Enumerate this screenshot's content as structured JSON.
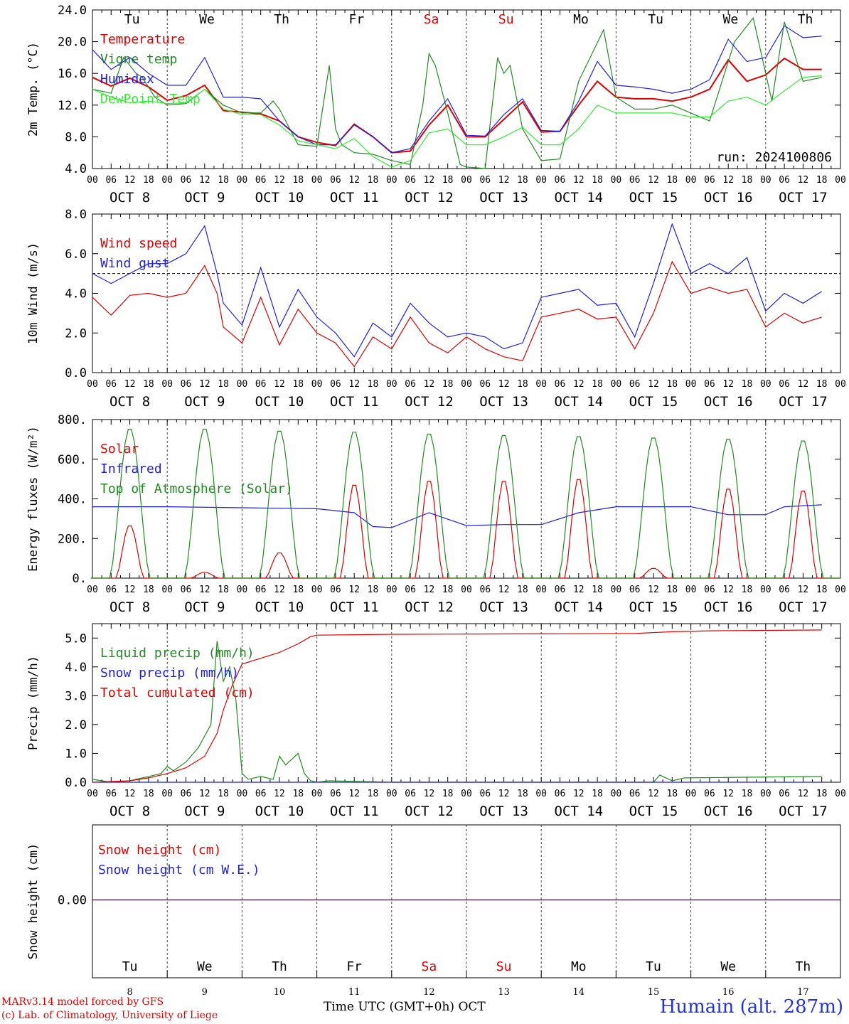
{
  "chart_data": [
    {
      "type": "line",
      "panel": "temperature",
      "ylabel": "2m Temp. (°C)",
      "ylim": [
        4.0,
        24.0
      ],
      "yticks": [
        "4.0",
        "8.0",
        "12.0",
        "16.0",
        "20.0",
        "24.0"
      ],
      "x_unit": "hours since Oct 8 00 UTC",
      "series": [
        {
          "name": "Temperature",
          "color": "#e00000",
          "x": [
            0,
            6,
            12,
            18,
            24,
            30,
            36,
            42,
            48,
            54,
            60,
            66,
            72,
            78,
            84,
            90,
            96,
            102,
            108,
            114,
            120,
            126,
            132,
            138,
            144,
            150,
            156,
            162,
            168,
            174,
            180,
            186,
            192,
            198,
            204,
            210,
            216,
            222,
            228,
            234
          ],
          "y": [
            15.5,
            14.4,
            15.4,
            14.3,
            12.6,
            13.2,
            14.5,
            11.3,
            11.1,
            10.9,
            10.0,
            8.0,
            7.3,
            6.9,
            9.6,
            8.0,
            6.0,
            6.2,
            9.5,
            12.0,
            8.0,
            8.0,
            10.2,
            12.4,
            8.6,
            8.7,
            12.0,
            15.0,
            13.0,
            12.8,
            12.8,
            12.5,
            13.0,
            14.0,
            17.7,
            15.0,
            15.8,
            17.9,
            16.5,
            16.5
          ]
        },
        {
          "name": "Vigne temp",
          "color": "#228b22",
          "x": [
            0,
            6,
            10,
            12,
            14,
            16,
            20,
            24,
            30,
            36,
            42,
            48,
            54,
            58,
            60,
            66,
            72,
            76,
            78,
            80,
            84,
            90,
            96,
            102,
            106,
            108,
            110,
            114,
            118,
            120,
            126,
            130,
            132,
            134,
            138,
            144,
            150,
            156,
            164,
            168,
            174,
            180,
            186,
            192,
            198,
            206,
            212,
            218,
            222,
            228,
            234
          ],
          "y": [
            14.0,
            13.5,
            18.0,
            17.0,
            16.0,
            15.5,
            13.0,
            12.0,
            12.2,
            14.0,
            12.0,
            11.0,
            11.0,
            12.5,
            11.5,
            7.0,
            6.8,
            17.0,
            9.0,
            7.0,
            6.0,
            5.8,
            5.0,
            4.5,
            12.0,
            18.5,
            17.0,
            11.0,
            4.5,
            4.2,
            4.0,
            18.0,
            16.0,
            17.0,
            9.0,
            5.0,
            5.2,
            15.0,
            21.5,
            13.0,
            11.5,
            11.5,
            12.0,
            11.0,
            10.0,
            20.0,
            23.0,
            12.5,
            22.5,
            15.0,
            15.5
          ]
        },
        {
          "name": "Humidex",
          "color": "#1e1ee6",
          "x": [
            0,
            6,
            12,
            18,
            24,
            30,
            36,
            42,
            48,
            54,
            60,
            66,
            72,
            78,
            84,
            90,
            96,
            102,
            108,
            114,
            120,
            126,
            132,
            138,
            144,
            150,
            156,
            162,
            168,
            174,
            180,
            186,
            192,
            198,
            204,
            210,
            216,
            222,
            228,
            234
          ],
          "y": [
            19.0,
            16.5,
            18.0,
            16.0,
            14.5,
            14.5,
            18.0,
            13.0,
            13.0,
            12.8,
            10.0,
            8.0,
            7.0,
            7.0,
            9.5,
            8.0,
            6.0,
            6.5,
            10.0,
            12.8,
            8.2,
            8.1,
            10.8,
            12.8,
            8.8,
            8.7,
            12.5,
            17.5,
            14.5,
            14.3,
            14.0,
            13.5,
            14.0,
            15.2,
            20.3,
            17.5,
            18.0,
            22.0,
            20.5,
            20.7
          ]
        },
        {
          "name": "DewPoint Temp",
          "color": "#33ee33",
          "x": [
            0,
            6,
            12,
            18,
            24,
            30,
            36,
            42,
            48,
            54,
            60,
            66,
            72,
            78,
            84,
            90,
            96,
            102,
            108,
            114,
            120,
            126,
            132,
            138,
            144,
            150,
            156,
            162,
            168,
            174,
            180,
            186,
            192,
            198,
            204,
            210,
            216,
            222,
            228,
            234
          ],
          "y": [
            14.0,
            13.0,
            12.3,
            12.5,
            12.2,
            12.3,
            14.0,
            11.5,
            10.8,
            10.8,
            9.5,
            7.5,
            7.0,
            6.5,
            7.8,
            5.5,
            4.2,
            5.0,
            8.5,
            9.0,
            7.0,
            7.0,
            8.0,
            9.2,
            7.0,
            7.0,
            9.0,
            12.0,
            11.0,
            11.0,
            11.0,
            11.0,
            10.5,
            10.5,
            12.5,
            13.0,
            12.0,
            13.8,
            15.5,
            15.7
          ]
        }
      ]
    },
    {
      "type": "line",
      "panel": "wind",
      "ylabel": "10m Wind (m/s)",
      "ylim": [
        0.0,
        8.0
      ],
      "yticks": [
        "0.0",
        "2.0",
        "4.0",
        "6.0",
        "8.0"
      ],
      "reference_line": 5.0,
      "series": [
        {
          "name": "Wind speed",
          "color": "#e00000",
          "x": [
            0,
            6,
            12,
            18,
            24,
            30,
            36,
            40,
            42,
            48,
            54,
            60,
            66,
            72,
            78,
            84,
            90,
            96,
            102,
            108,
            114,
            120,
            126,
            132,
            138,
            144,
            150,
            156,
            162,
            168,
            174,
            180,
            186,
            192,
            198,
            204,
            210,
            216,
            222,
            228,
            234
          ],
          "y": [
            3.8,
            2.9,
            3.9,
            4.0,
            3.8,
            4.0,
            5.4,
            4.0,
            2.3,
            1.5,
            3.8,
            1.4,
            3.2,
            2.0,
            1.5,
            0.3,
            1.8,
            1.2,
            2.8,
            1.5,
            1.0,
            1.8,
            1.2,
            0.8,
            0.6,
            2.8,
            3.0,
            3.2,
            2.7,
            2.8,
            1.2,
            3.0,
            5.6,
            4.0,
            4.3,
            4.0,
            4.2,
            2.3,
            3.0,
            2.5,
            2.8
          ]
        },
        {
          "name": "Wind gust",
          "color": "#1e1ee6",
          "x": [
            0,
            6,
            12,
            18,
            24,
            30,
            36,
            40,
            42,
            48,
            54,
            60,
            66,
            72,
            78,
            84,
            90,
            96,
            102,
            108,
            114,
            120,
            126,
            132,
            138,
            144,
            150,
            156,
            162,
            168,
            174,
            180,
            186,
            192,
            198,
            204,
            210,
            216,
            222,
            228,
            234
          ],
          "y": [
            5.0,
            4.5,
            5.0,
            5.5,
            5.5,
            6.0,
            7.4,
            5.0,
            3.5,
            2.4,
            5.3,
            2.3,
            4.2,
            2.8,
            2.0,
            0.8,
            2.5,
            1.8,
            3.5,
            2.5,
            1.8,
            2.0,
            1.8,
            1.2,
            1.5,
            3.8,
            4.0,
            4.2,
            3.4,
            3.5,
            1.8,
            4.5,
            7.5,
            5.0,
            5.5,
            5.0,
            5.8,
            3.1,
            4.0,
            3.5,
            4.1
          ]
        }
      ]
    },
    {
      "type": "line",
      "panel": "energy",
      "ylabel": "Energy fluxes (W/m²)",
      "ylim": [
        0,
        800
      ],
      "yticks": [
        "0.",
        "200.",
        "400.",
        "600.",
        "800."
      ],
      "series": [
        {
          "name": "Solar",
          "color": "#e00000",
          "peaks": [
            270,
            30,
            130,
            480,
            500,
            500,
            510,
            50,
            460,
            450
          ]
        },
        {
          "name": "Infrared",
          "color": "#1e1ee6",
          "x": [
            0,
            24,
            48,
            72,
            84,
            90,
            96,
            108,
            120,
            132,
            138,
            144,
            156,
            168,
            180,
            192,
            204,
            216,
            222,
            234
          ],
          "y": [
            360,
            360,
            355,
            350,
            330,
            260,
            255,
            330,
            265,
            270,
            270,
            270,
            330,
            360,
            360,
            360,
            320,
            320,
            360,
            370
          ]
        },
        {
          "name": "Top of Atmosphere (Solar)",
          "color": "#228b22",
          "peaks": [
            760,
            760,
            750,
            745,
            735,
            728,
            722,
            715,
            708,
            700
          ]
        }
      ]
    },
    {
      "type": "line",
      "panel": "precip",
      "ylabel": "Precip (mm/h)",
      "ylim": [
        0.0,
        5.5
      ],
      "yticks": [
        "0.0",
        "1.0",
        "2.0",
        "3.0",
        "4.0",
        "5.0"
      ],
      "series": [
        {
          "name": "Liquid precip (mm/h)",
          "color": "#228b22",
          "x": [
            0,
            6,
            12,
            18,
            22,
            24,
            26,
            30,
            34,
            38,
            40,
            42,
            44,
            46,
            48,
            50,
            54,
            58,
            60,
            62,
            64,
            66,
            68,
            70,
            72,
            76,
            96,
            180,
            182,
            186,
            190,
            234
          ],
          "y": [
            0.1,
            0.0,
            0.05,
            0.2,
            0.3,
            0.55,
            0.4,
            0.7,
            1.2,
            2.0,
            4.9,
            3.5,
            4.0,
            2.9,
            0.3,
            0.1,
            0.2,
            0.1,
            0.9,
            0.6,
            0.8,
            1.0,
            0.3,
            0.05,
            0.0,
            0.05,
            0.0,
            0.0,
            0.25,
            0.05,
            0.15,
            0.2
          ]
        },
        {
          "name": "Snow precip (mm/h)",
          "color": "#1e1ee6",
          "x": [
            0,
            234
          ],
          "y": [
            0,
            0
          ]
        },
        {
          "name": "Total cumulated (cm)",
          "color": "#e00000",
          "x": [
            0,
            12,
            18,
            24,
            30,
            36,
            40,
            42,
            45,
            48,
            54,
            60,
            66,
            70,
            72,
            96,
            120,
            150,
            174,
            186,
            198,
            234
          ],
          "y": [
            0.0,
            0.05,
            0.15,
            0.3,
            0.5,
            0.9,
            1.7,
            2.5,
            3.4,
            4.1,
            4.3,
            4.5,
            4.8,
            5.05,
            5.1,
            5.13,
            5.14,
            5.15,
            5.16,
            5.22,
            5.25,
            5.28
          ]
        }
      ]
    },
    {
      "type": "line",
      "panel": "snow",
      "ylabel": "Snow height (cm)",
      "yticks": [
        "0.00"
      ],
      "series": [
        {
          "name": "Snow height (cm)",
          "color": "#e00000",
          "x": [
            0,
            240
          ],
          "y": [
            0,
            0
          ]
        },
        {
          "name": "Snow height (cm W.E.)",
          "color": "#1e1ee6",
          "x": [
            0,
            240
          ],
          "y": [
            0,
            0
          ]
        }
      ]
    }
  ],
  "axis": {
    "weekdays": [
      "Tu",
      "We",
      "Th",
      "Fr",
      "Sa",
      "Su",
      "Mo",
      "Tu",
      "We",
      "Th"
    ],
    "weekend_color": "#e00000",
    "date_labels": [
      "OCT  8",
      "OCT  9",
      "OCT 10",
      "OCT 11",
      "OCT 12",
      "OCT 13",
      "OCT 14",
      "OCT 15",
      "OCT 16",
      "OCT 17"
    ],
    "hour_labels": [
      "00",
      "06",
      "12",
      "18"
    ],
    "final_hour_label": "00",
    "day_numbers": [
      "8",
      "9",
      "10",
      "11",
      "12",
      "13",
      "14",
      "15",
      "16",
      "17"
    ]
  },
  "run_label": "run: 2024100806",
  "time_label": "Time UTC (GMT+0h) OCT",
  "credit_line1": "MARv3.14 model forced by GFS",
  "credit_line2": "(c) Lab. of Climatology, University of Liege",
  "station": "Humain (alt. 287m)"
}
